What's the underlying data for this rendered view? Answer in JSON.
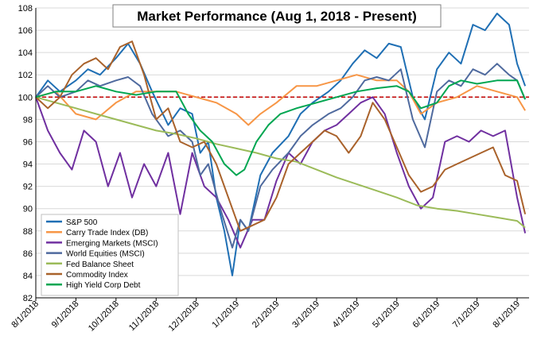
{
  "chart_data": {
    "type": "line",
    "title": "Market Performance (Aug 1, 2018 - Present)",
    "xlabel": "",
    "ylabel": "",
    "ylim": [
      82,
      108
    ],
    "y_ticks": [
      82,
      84,
      86,
      88,
      90,
      92,
      94,
      96,
      98,
      100,
      102,
      104,
      106,
      108
    ],
    "x_ticks": [
      "8/1/2018",
      "9/1/2018",
      "10/1/2018",
      "11/1/2018",
      "12/1/2018",
      "1/1/2019",
      "2/1/2019",
      "3/1/2019",
      "4/1/2019",
      "5/1/2019",
      "6/1/2019",
      "7/1/2019",
      "8/1/2019"
    ],
    "grid": "horizontal",
    "reference_line": {
      "y": 100,
      "color": "#c00000",
      "style": "dashed"
    },
    "legend_position": "bottom-left",
    "series": [
      {
        "name": "S&P 500",
        "color": "#1f6fb4",
        "x": [
          0,
          0.3,
          0.6,
          1,
          1.3,
          1.6,
          2,
          2.3,
          2.6,
          2.9,
          3.3,
          3.6,
          3.9,
          4.1,
          4.3,
          4.5,
          4.7,
          4.9,
          5.1,
          5.3,
          5.6,
          5.9,
          6.3,
          6.6,
          6.9,
          7.3,
          7.6,
          7.9,
          8.2,
          8.5,
          8.8,
          9.1,
          9.4,
          9.7,
          10,
          10.3,
          10.6,
          10.9,
          11.2,
          11.5,
          11.8,
          12,
          12.2
        ],
        "values": [
          100,
          101.5,
          100.5,
          101.5,
          102.5,
          102,
          103.5,
          104.8,
          103,
          100.5,
          97.5,
          99,
          98.5,
          95,
          96,
          91,
          88,
          84,
          89,
          88,
          93,
          95,
          96.5,
          98.5,
          99.5,
          100.5,
          101.5,
          103,
          104.2,
          103.5,
          104.8,
          104.5,
          100,
          98,
          102.5,
          104,
          103,
          106.5,
          106,
          107.5,
          106.5,
          103,
          101
        ]
      },
      {
        "name": "Carry Trade Index (DB)",
        "color": "#f79646",
        "x": [
          0,
          0.5,
          1,
          1.5,
          2,
          2.5,
          3,
          3.5,
          4,
          4.5,
          5,
          5.3,
          5.6,
          6,
          6.5,
          7,
          7.5,
          8,
          8.5,
          9,
          9.3,
          9.6,
          10,
          10.5,
          11,
          11.5,
          12,
          12.2
        ],
        "values": [
          100,
          100.5,
          98.5,
          98,
          99.5,
          100.5,
          100.5,
          100.5,
          100,
          99.5,
          98.5,
          97.5,
          98.5,
          99.5,
          101,
          101,
          101.5,
          102,
          101.5,
          101.5,
          100.5,
          98.5,
          99.5,
          100,
          101,
          100.5,
          100,
          98.8
        ]
      },
      {
        "name": "Emerging Markets (MSCI)",
        "color": "#7030a0",
        "x": [
          0,
          0.3,
          0.6,
          0.9,
          1.2,
          1.5,
          1.8,
          2.1,
          2.4,
          2.7,
          3,
          3.3,
          3.6,
          3.9,
          4.2,
          4.5,
          4.8,
          5.1,
          5.4,
          5.7,
          6,
          6.3,
          6.6,
          6.9,
          7.2,
          7.5,
          7.8,
          8.1,
          8.4,
          8.7,
          9,
          9.3,
          9.6,
          9.9,
          10.2,
          10.5,
          10.8,
          11.1,
          11.4,
          11.7,
          12,
          12.2
        ],
        "values": [
          100,
          97,
          95,
          93.5,
          97,
          96,
          92,
          95,
          91,
          94,
          92,
          95,
          89.5,
          95,
          92,
          91,
          89,
          86.5,
          89,
          89,
          92.5,
          95,
          94,
          96,
          97,
          97.5,
          98.5,
          99.5,
          100,
          98.5,
          95,
          92,
          90,
          91,
          96,
          96.5,
          96,
          97,
          96.5,
          97,
          91,
          87.8
        ]
      },
      {
        "name": "World Equities (MSCI)",
        "color": "#4f6a9e",
        "x": [
          0,
          0.3,
          0.6,
          1,
          1.3,
          1.6,
          2,
          2.3,
          2.6,
          2.9,
          3.3,
          3.6,
          3.9,
          4.1,
          4.3,
          4.6,
          4.9,
          5.1,
          5.3,
          5.6,
          5.9,
          6.3,
          6.6,
          6.9,
          7.3,
          7.6,
          7.9,
          8.2,
          8.5,
          8.8,
          9.1,
          9.4,
          9.7,
          10,
          10.3,
          10.6,
          10.9,
          11.2,
          11.5,
          11.8,
          12,
          12.2
        ],
        "values": [
          100,
          101,
          100,
          100.5,
          101.5,
          101,
          101.5,
          101.8,
          101,
          98.5,
          96.5,
          97,
          96,
          93,
          94,
          90,
          86.5,
          89,
          88,
          92,
          93.5,
          95,
          96.5,
          97.5,
          98.5,
          99,
          100,
          101.5,
          101.8,
          101.5,
          102.5,
          98,
          95.5,
          100.5,
          101.5,
          101,
          102.5,
          102,
          103,
          102,
          101.5,
          99.8
        ]
      },
      {
        "name": "Fed Balance Sheet",
        "color": "#9bbb59",
        "x": [
          0,
          0.5,
          1,
          1.5,
          2,
          2.5,
          3,
          3.5,
          4,
          4.5,
          5,
          5.5,
          6,
          6.5,
          7,
          7.5,
          8,
          8.5,
          9,
          9.5,
          10,
          10.5,
          11,
          11.5,
          12,
          12.2
        ],
        "values": [
          100,
          99.5,
          99,
          98.5,
          98,
          97.5,
          97,
          96.7,
          96.3,
          95.8,
          95.4,
          95,
          94.5,
          94.2,
          93.5,
          92.8,
          92.2,
          91.6,
          91,
          90.3,
          90,
          89.8,
          89.5,
          89.2,
          88.9,
          88.3
        ]
      },
      {
        "name": "Commodity Index",
        "color": "#a9622b",
        "x": [
          0,
          0.3,
          0.6,
          0.9,
          1.2,
          1.5,
          1.8,
          2.1,
          2.4,
          2.7,
          3,
          3.3,
          3.6,
          3.9,
          4.2,
          4.5,
          4.8,
          5.1,
          5.4,
          5.7,
          6,
          6.3,
          6.6,
          6.9,
          7.2,
          7.5,
          7.8,
          8.1,
          8.4,
          8.7,
          9,
          9.3,
          9.6,
          9.9,
          10.2,
          10.5,
          10.8,
          11.1,
          11.4,
          11.7,
          12,
          12.2
        ],
        "values": [
          100,
          99,
          100,
          102,
          103,
          103.5,
          102.5,
          104.5,
          105,
          102,
          98,
          99,
          96,
          95.5,
          96,
          94,
          91,
          88,
          88.5,
          89,
          91,
          94,
          95,
          96,
          97,
          96.5,
          95,
          96.5,
          99.5,
          98,
          95.5,
          93,
          91.5,
          92,
          93.5,
          94,
          94.5,
          95,
          95.5,
          93,
          92.5,
          89.5
        ]
      },
      {
        "name": "High Yield Corp Debt",
        "color": "#00a651",
        "x": [
          0,
          0.5,
          1,
          1.5,
          2,
          2.5,
          3,
          3.5,
          3.8,
          4.1,
          4.4,
          4.7,
          5,
          5.2,
          5.5,
          5.8,
          6.1,
          6.5,
          7,
          7.5,
          8,
          8.5,
          9,
          9.3,
          9.6,
          10,
          10.3,
          10.6,
          11,
          11.5,
          12,
          12.2
        ],
        "values": [
          100,
          100.5,
          100.5,
          101,
          100.5,
          100.2,
          100.5,
          100.5,
          98.5,
          97,
          96,
          94,
          93,
          93.5,
          96,
          97.5,
          98.5,
          99,
          99.5,
          100,
          100.5,
          100.8,
          101,
          100.5,
          99,
          99.5,
          101,
          101.5,
          101.2,
          101.5,
          101.5,
          99.8
        ]
      }
    ]
  }
}
